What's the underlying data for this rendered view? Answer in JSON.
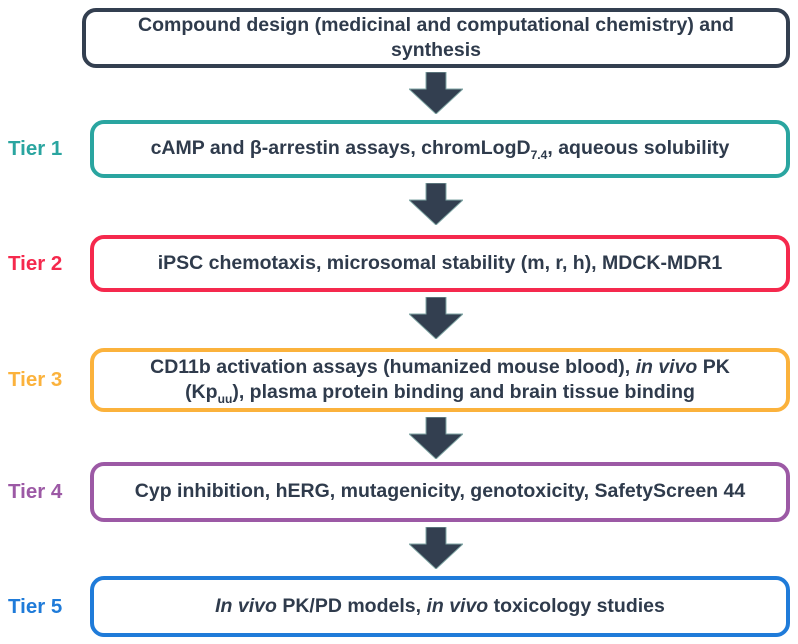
{
  "colors": {
    "navy": "#333F50",
    "text": "#2F3B4C",
    "tier1": "#2AA5A0",
    "tier2": "#F5294D",
    "tier3": "#FBB23C",
    "tier4": "#9C59A5",
    "tier5": "#1F7BD9"
  },
  "top_box": {
    "segments": [
      {
        "text": "Compound design (medicinal and computational chemistry) and",
        "style": "normal"
      },
      {
        "style": "break"
      },
      {
        "text": "synthesis",
        "style": "normal"
      }
    ]
  },
  "tiers": [
    {
      "label": "Tier 1",
      "color": "#2AA5A0",
      "segments": [
        {
          "text": "cAMP and β-arrestin assays, chromLogD",
          "style": "normal"
        },
        {
          "text": "7.4",
          "style": "sub"
        },
        {
          "text": ", aqueous solubility",
          "style": "normal"
        }
      ]
    },
    {
      "label": "Tier 2",
      "color": "#F5294D",
      "segments": [
        {
          "text": "iPSC chemotaxis, microsomal stability (m, r, h), MDCK-MDR1",
          "style": "normal"
        }
      ]
    },
    {
      "label": "Tier 3",
      "color": "#FBB23C",
      "segments": [
        {
          "text": "CD11b activation assays (humanized mouse blood), ",
          "style": "normal"
        },
        {
          "text": "in vivo",
          "style": "italic"
        },
        {
          "text": " PK",
          "style": "normal"
        },
        {
          "style": "break"
        },
        {
          "text": "(Kp",
          "style": "normal"
        },
        {
          "text": "uu",
          "style": "sub"
        },
        {
          "text": "), plasma protein binding and brain tissue binding",
          "style": "normal"
        }
      ]
    },
    {
      "label": "Tier 4",
      "color": "#9C59A5",
      "segments": [
        {
          "text": "Cyp inhibition, hERG, mutagenicity, genotoxicity, SafetyScreen 44",
          "style": "normal"
        }
      ]
    },
    {
      "label": "Tier 5",
      "color": "#1F7BD9",
      "segments": [
        {
          "text": "In vivo",
          "style": "italic"
        },
        {
          "text": " PK/PD models, ",
          "style": "normal"
        },
        {
          "text": "in vivo",
          "style": "italic"
        },
        {
          "text": " toxicology studies",
          "style": "normal"
        }
      ]
    }
  ]
}
